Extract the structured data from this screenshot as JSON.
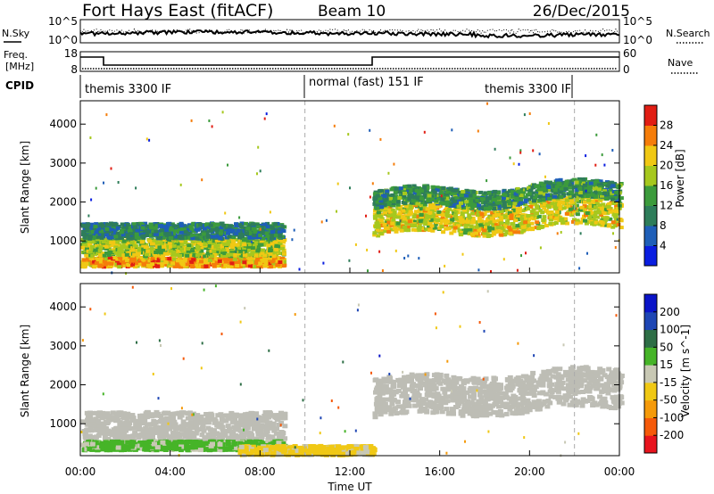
{
  "header": {
    "station": "Fort Hays East (fitACF)",
    "beam": "Beam 10",
    "date": "26/Dec/2015"
  },
  "strip_sky": {
    "left_label": "N.Sky",
    "left_ticks": [
      "10^5",
      "10^0"
    ],
    "right_ticks": [
      "10^5",
      "10^0"
    ],
    "right_label": "N.Search"
  },
  "strip_freq": {
    "left_label_1": "Freq.",
    "left_label_2": "[MHz]",
    "left_ticks": [
      "18",
      "8"
    ],
    "right_ticks": [
      "60",
      "0"
    ],
    "right_label": "Nave"
  },
  "cpid": {
    "label": "CPID",
    "segments": [
      "themis 3300 IF",
      "normal (fast) 151 IF",
      "themis 3300 IF"
    ]
  },
  "x_axis": {
    "label": "Time UT",
    "ticks": [
      "00:00",
      "04:00",
      "08:00",
      "12:00",
      "16:00",
      "20:00",
      "00:00"
    ]
  },
  "colors": {
    "power": [
      "#0a1ee0",
      "#1f5fb8",
      "#2e7d5a",
      "#3c9b3c",
      "#a6c81e",
      "#f0c814",
      "#f57d0a",
      "#e11e14"
    ],
    "velocity": [
      "#e8141e",
      "#f55a0a",
      "#f59a0a",
      "#f0c814",
      "#c8c8b4",
      "#46b428",
      "#2e6e46",
      "#1e46b4",
      "#0a14c8"
    ],
    "ground_scatter": "#bdbdb5"
  },
  "chart_data": [
    {
      "type": "heatmap",
      "title": "",
      "xlabel": "Time UT",
      "ylabel": "Slant Range [km]",
      "xlim": [
        0,
        24
      ],
      "ylim": [
        180,
        4600
      ],
      "yticks": [
        1000,
        2000,
        3000,
        4000
      ],
      "colorbar": {
        "label": "Power [dB]",
        "range": [
          0,
          32
        ],
        "ticks": [
          4,
          8,
          12,
          16,
          20,
          24,
          28
        ]
      },
      "bands": [
        {
          "t": [
            0,
            9
          ],
          "r": [
            380,
            620
          ],
          "power": 24
        },
        {
          "t": [
            0,
            9
          ],
          "r": [
            650,
            1100
          ],
          "power": 18
        },
        {
          "t": [
            0,
            9
          ],
          "r": [
            1100,
            1500
          ],
          "power": 10
        },
        {
          "t": [
            13,
            24
          ],
          "r": [
            1150,
            1850
          ],
          "power": 20
        },
        {
          "t": [
            13,
            24
          ],
          "r": [
            1850,
            2300
          ],
          "power": 12
        }
      ]
    },
    {
      "type": "heatmap",
      "title": "",
      "xlabel": "Time UT",
      "ylabel": "Slant Range [km]",
      "xlim": [
        0,
        24
      ],
      "ylim": [
        180,
        4600
      ],
      "yticks": [
        1000,
        2000,
        3000,
        4000
      ],
      "colorbar": {
        "label": "Velocity [m s^-1]",
        "range": [
          -250,
          250
        ],
        "ticks": [
          200,
          100,
          50,
          15,
          -15,
          -50,
          -100,
          -200
        ]
      },
      "bands": [
        {
          "t": [
            0,
            9
          ],
          "r": [
            600,
            1350
          ],
          "velocity": 0,
          "kind": "ground scatter"
        },
        {
          "t": [
            0,
            9
          ],
          "r": [
            380,
            600
          ],
          "velocity": 40
        },
        {
          "t": [
            7,
            13
          ],
          "r": [
            250,
            480
          ],
          "velocity": -40
        },
        {
          "t": [
            13,
            24
          ],
          "r": [
            1200,
            2200
          ],
          "velocity": 0,
          "kind": "ground scatter"
        }
      ]
    }
  ]
}
